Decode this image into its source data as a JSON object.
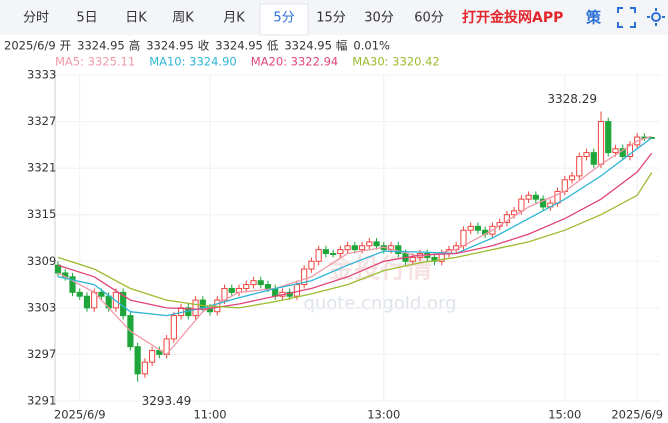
{
  "tabs": [
    "分时",
    "5日",
    "日K",
    "周K",
    "月K",
    "5分",
    "15分",
    "30分",
    "60分"
  ],
  "active_tab": 5,
  "app_link": "打开金投网APP",
  "strategy": "策",
  "info_bar": [
    "2025/6/9",
    "开",
    "3324.95",
    "高",
    "3324.95",
    "收",
    "3324.95",
    "低",
    "3324.95",
    "幅",
    "0.01%"
  ],
  "watermark": [
    "金投行情",
    "quote.cngold.org"
  ],
  "chart_data": {
    "type": "candlestick",
    "categories": [
      null,
      null,
      null,
      "2025/6/9",
      null,
      null,
      null,
      null,
      null,
      null,
      null,
      null,
      null,
      null,
      null,
      null,
      null,
      null,
      null,
      null,
      null,
      "11:00",
      null,
      null,
      null,
      null,
      null,
      null,
      null,
      null,
      null,
      null,
      null,
      null,
      null,
      null,
      null,
      null,
      null,
      null,
      null,
      null,
      null,
      null,
      null,
      "13:00",
      null,
      null,
      null,
      null,
      null,
      null,
      null,
      null,
      null,
      null,
      null,
      null,
      null,
      null,
      null,
      null,
      null,
      null,
      null,
      null,
      null,
      null,
      null,
      null,
      "15:00",
      null,
      null,
      null,
      null,
      null,
      null,
      null,
      null,
      null,
      "2025/6/9",
      null,
      null
    ],
    "open": [
      3308.5,
      3307.5,
      3307,
      3305,
      3304.5,
      3303,
      3305,
      3304.5,
      3303,
      3305,
      3302,
      3298,
      3294.5,
      3296,
      3297.5,
      3297,
      3299,
      3302,
      3303,
      3302,
      3304,
      3303,
      3302.5,
      3304,
      3305.5,
      3305,
      3305.5,
      3306,
      3306.5,
      3306,
      3305.5,
      3304.5,
      3305,
      3304.5,
      3306,
      3308,
      3309,
      3310.5,
      3310,
      3310,
      3310.5,
      3311,
      3310.5,
      3311,
      3311.5,
      3311,
      3310.5,
      3311,
      3310,
      3309,
      3309.5,
      3310,
      3309.5,
      3309,
      3310,
      3310.5,
      3311,
      3313,
      3313.5,
      3313,
      3312.5,
      3313.5,
      3314,
      3315,
      3315.5,
      3317,
      3317.5,
      3317,
      3316,
      3316.5,
      3318,
      3319.5,
      3320,
      3322.5,
      3323,
      3321.5,
      3327,
      3323,
      3323.5,
      3322.5,
      3324,
      3325,
      3324.95
    ],
    "high": [
      3309,
      3308,
      3307.5,
      3305.5,
      3305,
      3305.5,
      3305.5,
      3305,
      3305.5,
      3305.5,
      3302.5,
      3298.5,
      3296.5,
      3298,
      3298,
      3299.5,
      3302.5,
      3303.5,
      3303.5,
      3304.5,
      3304.5,
      3303.5,
      3304.5,
      3306,
      3306,
      3306,
      3306.5,
      3307,
      3307,
      3306.5,
      3306,
      3305.5,
      3305.5,
      3306.5,
      3308.5,
      3309.5,
      3311,
      3311,
      3310.5,
      3311,
      3311.5,
      3311.5,
      3311.5,
      3312,
      3312,
      3311.5,
      3311.5,
      3311.5,
      3310.5,
      3310,
      3310.5,
      3310.5,
      3310,
      3310.5,
      3311,
      3311.5,
      3313.5,
      3314,
      3314,
      3313.5,
      3314,
      3314.5,
      3315.5,
      3316,
      3317.5,
      3318,
      3318,
      3317.5,
      3317,
      3318.5,
      3320,
      3320.5,
      3323,
      3323.5,
      3323.5,
      3328.29,
      3327.5,
      3324,
      3324,
      3324.5,
      3325.5,
      3325.5,
      3324.95
    ],
    "low": [
      3307,
      3306.5,
      3304.5,
      3304,
      3302.5,
      3302.5,
      3304,
      3302.5,
      3302.5,
      3301.5,
      3297.5,
      3293.49,
      3294,
      3295.5,
      3296.5,
      3296.5,
      3298.5,
      3301.5,
      3301.5,
      3301.5,
      3302.5,
      3302,
      3302,
      3303.5,
      3304.5,
      3304.5,
      3305,
      3305.5,
      3305.5,
      3305,
      3304,
      3304,
      3304,
      3304,
      3305.5,
      3307.5,
      3308.5,
      3309.5,
      3309.5,
      3309.5,
      3310,
      3310,
      3310,
      3310.5,
      3310.5,
      3310,
      3310,
      3309.5,
      3308.5,
      3308.5,
      3309,
      3309,
      3308.5,
      3308.5,
      3309.5,
      3310,
      3310.5,
      3312.5,
      3312.5,
      3312,
      3312,
      3313,
      3313.5,
      3314.5,
      3315,
      3316.5,
      3316.5,
      3315.5,
      3315.5,
      3316,
      3317.5,
      3319,
      3319.5,
      3322,
      3321,
      3321,
      3322.5,
      3322.5,
      3322,
      3322,
      3323.5,
      3324.5,
      3324.95
    ],
    "close": [
      3307.5,
      3307,
      3305,
      3304.5,
      3303,
      3305,
      3304.5,
      3303,
      3305,
      3302,
      3298,
      3294.5,
      3296,
      3297.5,
      3297,
      3299,
      3302,
      3303,
      3302,
      3304,
      3303,
      3302.5,
      3304,
      3305.5,
      3305,
      3305.5,
      3306,
      3306.5,
      3306,
      3305.5,
      3304.5,
      3305,
      3304.5,
      3306,
      3308,
      3309,
      3310.5,
      3310,
      3310,
      3310.5,
      3311,
      3310.5,
      3311,
      3311.5,
      3311,
      3310.5,
      3311,
      3310,
      3309,
      3309.5,
      3310,
      3309.5,
      3309,
      3310,
      3310.5,
      3311,
      3313,
      3313.5,
      3313,
      3312.5,
      3313.5,
      3314,
      3315,
      3315.5,
      3317,
      3317.5,
      3317,
      3316,
      3316.5,
      3318,
      3319.5,
      3320,
      3322.5,
      3323,
      3321.5,
      3327,
      3323,
      3323.5,
      3322.5,
      3324,
      3325,
      3325,
      3324.95
    ],
    "up_color": "#f0443e",
    "down_color": "#1ea63a",
    "series": [
      {
        "name": "MA5: 3325.11",
        "color": "#f09aa8",
        "x": [
          0,
          5,
          10,
          15,
          20,
          25,
          30,
          35,
          40,
          45,
          50,
          55,
          60,
          65,
          70,
          75,
          80,
          82
        ],
        "values": [
          3307.5,
          3305,
          3300,
          3297,
          3302.5,
          3305,
          3305.5,
          3307,
          3310,
          3310.8,
          3309.6,
          3310.5,
          3313,
          3316,
          3318,
          3321.5,
          3324.5,
          3325.11
        ]
      },
      {
        "name": "MA10: 3324.90",
        "color": "#2eb5d6",
        "x": [
          0,
          5,
          10,
          15,
          20,
          25,
          30,
          35,
          40,
          45,
          50,
          55,
          60,
          65,
          70,
          75,
          80,
          82
        ],
        "values": [
          3307,
          3306,
          3302.5,
          3302,
          3303,
          3304.3,
          3305.5,
          3306.5,
          3308.5,
          3310.3,
          3310.2,
          3310,
          3312,
          3314.5,
          3317,
          3320,
          3323.5,
          3324.9
        ]
      },
      {
        "name": "MA20: 3322.94",
        "color": "#e0457a",
        "x": [
          0,
          5,
          10,
          15,
          20,
          25,
          30,
          35,
          40,
          45,
          50,
          55,
          60,
          65,
          70,
          75,
          80,
          82
        ],
        "values": [
          3308.5,
          3307,
          3304,
          3303,
          3302.8,
          3303.5,
          3304.5,
          3305.5,
          3307,
          3309,
          3309.8,
          3310,
          3311,
          3312.5,
          3314.5,
          3317,
          3320.5,
          3322.94
        ]
      },
      {
        "name": "MA30: 3320.42",
        "color": "#9cbb2e",
        "x": [
          0,
          5,
          10,
          15,
          20,
          25,
          30,
          35,
          40,
          45,
          50,
          55,
          60,
          65,
          70,
          75,
          80,
          82
        ],
        "values": [
          3309.5,
          3308,
          3305.5,
          3304,
          3303.3,
          3303,
          3303.8,
          3304.8,
          3306,
          3307.8,
          3308.8,
          3309.5,
          3310.5,
          3311.5,
          3313,
          3315,
          3317.5,
          3320.42
        ]
      }
    ],
    "ylim": [
      3291,
      3333
    ],
    "yticks": [
      3291,
      3297,
      3303,
      3309,
      3315,
      3321,
      3327,
      3333
    ],
    "grid": true
  }
}
